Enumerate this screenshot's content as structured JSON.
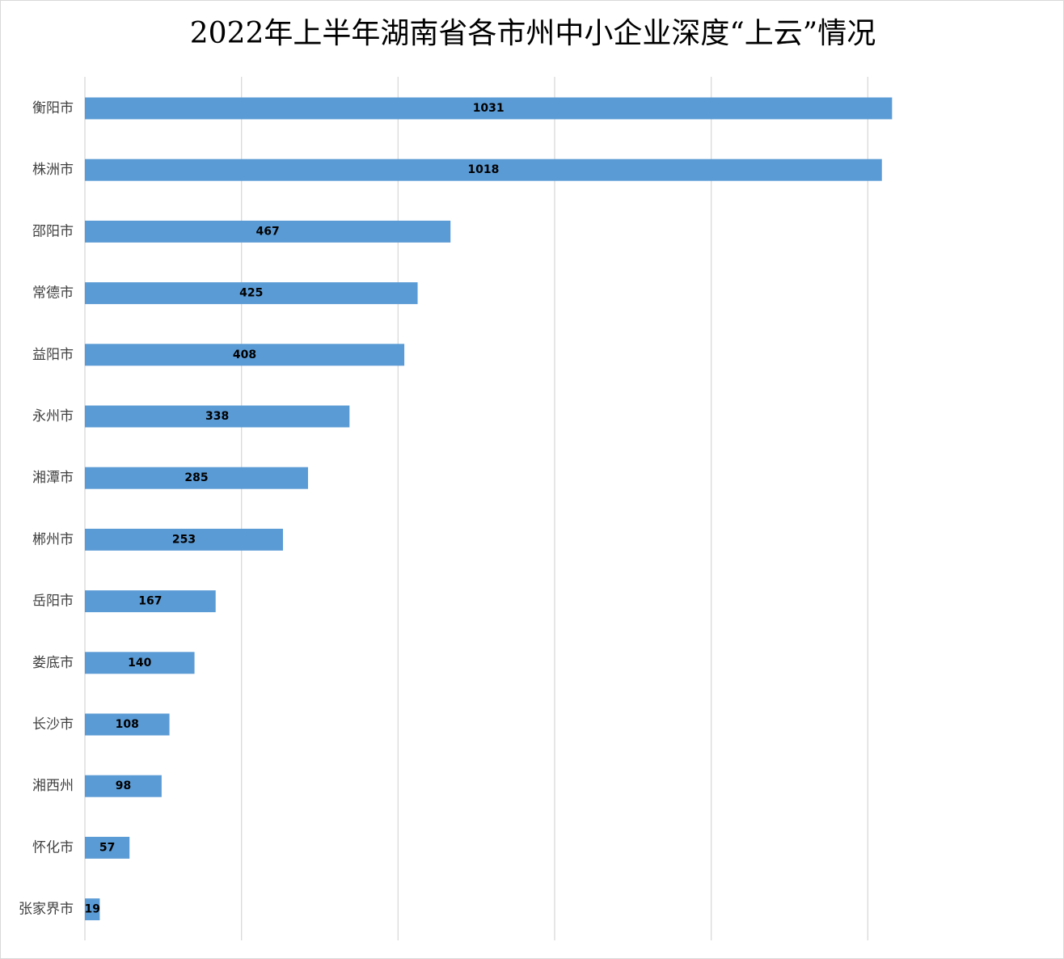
{
  "chart_data": {
    "type": "bar",
    "orientation": "horizontal",
    "title": "2022年上半年湖南省各市州中小企业深度“上云”情况",
    "categories": [
      "衡阳市",
      "株洲市",
      "邵阳市",
      "常德市",
      "益阳市",
      "永州市",
      "湘潭市",
      "郴州市",
      "岳阳市",
      "娄底市",
      "长沙市",
      "湘西州",
      "怀化市",
      "张家界市"
    ],
    "values": [
      1031,
      1018,
      467,
      425,
      408,
      338,
      285,
      253,
      167,
      140,
      108,
      98,
      57,
      19
    ],
    "xlim": [
      0,
      1200
    ],
    "gridlines_at": [
      0,
      200,
      400,
      600,
      800,
      1000
    ],
    "grid": true,
    "data_labels": true,
    "legend": "none",
    "bar_color": "#5b9bd5",
    "grid_color": "#d9d9d9"
  }
}
